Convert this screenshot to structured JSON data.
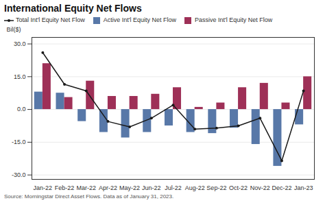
{
  "chart_data": {
    "type": "bar",
    "title": "International Equity Net Flows",
    "subtitle": "Source: Morningstar Direct Asset Flows. Data as of January 31, 2023.",
    "y_label": "Bil($)",
    "categories": [
      "Jan-22",
      "Feb-22",
      "Mar-22",
      "Apr-22",
      "May-22",
      "Jun-22",
      "Jul-22",
      "Aug-22",
      "Sep-22",
      "Oct-22",
      "Nov-22",
      "Dec-22",
      "Jan-23"
    ],
    "series": [
      {
        "name": "Total Int'l Equity Net Flow",
        "type": "line",
        "marker": "circle",
        "color": "#1a1a1a",
        "values": [
          26.0,
          11.5,
          8.5,
          -5.5,
          -8.0,
          -4.0,
          2.0,
          -9.0,
          -8.5,
          -7.5,
          -4.0,
          -23.5,
          8.5
        ]
      },
      {
        "name": "Active Int'l Equity Net Flow",
        "type": "bar",
        "color": "#5878a8",
        "values": [
          8.0,
          7.5,
          -5.5,
          -10.5,
          -13.0,
          -10.5,
          -7.5,
          -10.5,
          -11.0,
          -8.5,
          -16.0,
          -26.0,
          -7.0
        ]
      },
      {
        "name": "Passive Int'l Equity Net Flow",
        "type": "bar",
        "color": "#9e3057",
        "values": [
          21.0,
          5.5,
          13.0,
          6.0,
          6.0,
          7.0,
          10.0,
          1.0,
          3.0,
          10.0,
          12.0,
          3.0,
          15.0
        ]
      }
    ],
    "ylim": [
      -32,
      33
    ],
    "yticks": [
      {
        "value": -30,
        "label": "-30.0"
      },
      {
        "value": -15,
        "label": "-15.0"
      },
      {
        "value": 0,
        "label": "0.0"
      },
      {
        "value": 15,
        "label": "15.0"
      },
      {
        "value": 30,
        "label": "30.0"
      }
    ],
    "grid": true,
    "legend": "upper left"
  }
}
